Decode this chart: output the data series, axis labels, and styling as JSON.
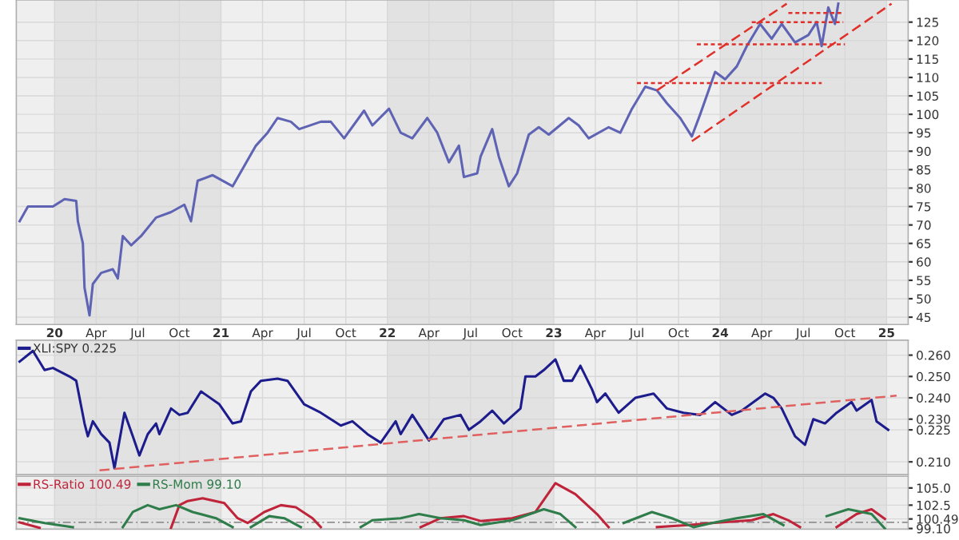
{
  "chart_data": [
    {
      "type": "line",
      "xlim": [
        2019.77,
        2025.13
      ],
      "ylim": [
        43,
        131
      ],
      "xticks": [
        {
          "value": 2020,
          "label": "20"
        },
        {
          "value": 2020.25,
          "label": "Apr"
        },
        {
          "value": 2020.5,
          "label": "Jul"
        },
        {
          "value": 2020.75,
          "label": "Oct"
        },
        {
          "value": 2021,
          "label": "21"
        },
        {
          "value": 2021.25,
          "label": "Apr"
        },
        {
          "value": 2021.5,
          "label": "Jul"
        },
        {
          "value": 2021.75,
          "label": "Oct"
        },
        {
          "value": 2022,
          "label": "22"
        },
        {
          "value": 2022.25,
          "label": "Apr"
        },
        {
          "value": 2022.5,
          "label": "Jul"
        },
        {
          "value": 2022.75,
          "label": "Oct"
        },
        {
          "value": 2023,
          "label": "23"
        },
        {
          "value": 2023.25,
          "label": "Apr"
        },
        {
          "value": 2023.5,
          "label": "Jul"
        },
        {
          "value": 2023.75,
          "label": "Oct"
        },
        {
          "value": 2024,
          "label": "24"
        },
        {
          "value": 2024.25,
          "label": "Apr"
        },
        {
          "value": 2024.5,
          "label": "Jul"
        },
        {
          "value": 2024.75,
          "label": "Oct"
        },
        {
          "value": 2025,
          "label": "25"
        }
      ],
      "yticks": [
        45,
        50,
        55,
        60,
        65,
        70,
        75,
        80,
        85,
        90,
        95,
        100,
        105,
        110,
        115,
        120,
        125
      ],
      "grid": true,
      "bands": [
        {
          "axis": "x",
          "from": 2020,
          "to": 2021,
          "color": "#e2e2e2"
        },
        {
          "axis": "x",
          "from": 2022,
          "to": 2023,
          "color": "#e2e2e2"
        },
        {
          "axis": "x",
          "from": 2024,
          "to": 2025,
          "color": "#e2e2e2"
        }
      ],
      "series": [
        {
          "color": "#5f63b4",
          "x": [
            2019.79,
            2019.84,
            2019.99,
            2020.06,
            2020.13,
            2020.14,
            2020.17,
            2020.18,
            2020.21,
            2020.23,
            2020.28,
            2020.35,
            2020.38,
            2020.41,
            2020.46,
            2020.52,
            2020.61,
            2020.7,
            2020.78,
            2020.82,
            2020.86,
            2020.95,
            2021.07,
            2021.14,
            2021.21,
            2021.28,
            2021.34,
            2021.42,
            2021.47,
            2021.6,
            2021.66,
            2021.74,
            2021.86,
            2021.91,
            2022.01,
            2022.08,
            2022.15,
            2022.24,
            2022.3,
            2022.37,
            2022.43,
            2022.46,
            2022.54,
            2022.56,
            2022.63,
            2022.67,
            2022.73,
            2022.78,
            2022.85,
            2022.91,
            2022.97,
            2023.09,
            2023.15,
            2023.21,
            2023.33,
            2023.4,
            2023.47,
            2023.55,
            2023.62,
            2023.68,
            2023.76,
            2023.83,
            2023.88,
            2023.97,
            2024.03,
            2024.1,
            2024.16,
            2024.24,
            2024.31,
            2024.37,
            2024.45,
            2024.53,
            2024.58,
            2024.61,
            2024.65,
            2024.69,
            2024.71
          ],
          "values": [
            71,
            75,
            75,
            77,
            76.5,
            71,
            65,
            53,
            45.5,
            54,
            57,
            58,
            55.5,
            67,
            64.5,
            67,
            72,
            73.5,
            75.5,
            71,
            82,
            83.5,
            80.5,
            86,
            91.5,
            95,
            99,
            98,
            96,
            98,
            98,
            93.5,
            101,
            97,
            101.5,
            95,
            93.5,
            99,
            95,
            87,
            91.5,
            83,
            84,
            88.5,
            96,
            88.5,
            80.5,
            84,
            94.5,
            96.5,
            94.5,
            99,
            97,
            93.5,
            96.5,
            95,
            101.5,
            107.5,
            106.5,
            103,
            99,
            94,
            100,
            111.5,
            109.5,
            113,
            118.5,
            124.5,
            120.5,
            124.5,
            119.5,
            121.5,
            125,
            118.5,
            129,
            124.5,
            130
          ]
        },
        {
          "color": "#e0302a",
          "line_style": "dashed",
          "x": [
            2023.62,
            2024.4
          ],
          "values": [
            106.5,
            130
          ]
        },
        {
          "color": "#e0302a",
          "line_style": "dashed",
          "x": [
            2023.83,
            2025.03
          ],
          "values": [
            92.7,
            130
          ]
        },
        {
          "color": "#e0302a",
          "line_style": "dotted",
          "x": [
            2023.5,
            2024.61
          ],
          "values": [
            108.5,
            108.5
          ]
        },
        {
          "color": "#e0302a",
          "line_style": "dotted",
          "x": [
            2023.86,
            2024.75
          ],
          "values": [
            119,
            119
          ]
        },
        {
          "color": "#e0302a",
          "line_style": "dotted",
          "x": [
            2024.19,
            2024.74
          ],
          "values": [
            125,
            125
          ]
        },
        {
          "color": "#e0302a",
          "line_style": "dotted",
          "x": [
            2024.41,
            2024.74
          ],
          "values": [
            127.5,
            127.5
          ]
        }
      ]
    },
    {
      "type": "line",
      "xlim": [
        2019.77,
        2025.13
      ],
      "ylim": [
        0.204,
        0.267
      ],
      "tick_labels": "y",
      "legend": "top left",
      "grid": true,
      "xticks": [
        2020,
        2020.25,
        2020.5,
        2020.75,
        2021,
        2021.25,
        2021.5,
        2021.75,
        2022,
        2022.25,
        2022.5,
        2022.75,
        2023,
        2023.25,
        2023.5,
        2023.75,
        2024,
        2024.25,
        2024.5,
        2024.75,
        2025
      ],
      "yticks": [
        {
          "value": 0.21,
          "label": "0.210"
        },
        {
          "value": 0.225,
          "label": "0.225"
        },
        {
          "value": 0.23,
          "label": "0.230"
        },
        {
          "value": 0.24,
          "label": "0.240"
        },
        {
          "value": 0.25,
          "label": "0.250"
        },
        {
          "value": 0.26,
          "label": "0.260"
        }
      ],
      "bands": [
        {
          "axis": "x",
          "from": 2020,
          "to": 2021,
          "color": "#e2e2e2"
        },
        {
          "axis": "x",
          "from": 2022,
          "to": 2023,
          "color": "#e2e2e2"
        },
        {
          "axis": "x",
          "from": 2024,
          "to": 2025,
          "color": "#e2e2e2"
        }
      ],
      "series": [
        {
          "name": "XLI:SPY 0.225",
          "color": "#1c1c8c",
          "x": [
            2019.79,
            2019.87,
            2019.94,
            2019.99,
            2020.09,
            2020.13,
            2020.18,
            2020.2,
            2020.23,
            2020.28,
            2020.33,
            2020.36,
            2020.42,
            2020.47,
            2020.51,
            2020.56,
            2020.61,
            2020.63,
            2020.7,
            2020.75,
            2020.8,
            2020.88,
            2020.99,
            2021.07,
            2021.12,
            2021.18,
            2021.24,
            2021.34,
            2021.4,
            2021.5,
            2021.6,
            2021.72,
            2021.79,
            2021.88,
            2021.96,
            2022.05,
            2022.08,
            2022.15,
            2022.25,
            2022.34,
            2022.44,
            2022.49,
            2022.56,
            2022.63,
            2022.7,
            2022.8,
            2022.83,
            2022.89,
            2022.94,
            2023.01,
            2023.06,
            2023.11,
            2023.16,
            2023.23,
            2023.26,
            2023.31,
            2023.39,
            2023.49,
            2023.6,
            2023.68,
            2023.78,
            2023.88,
            2023.97,
            2024.07,
            2024.13,
            2024.27,
            2024.32,
            2024.37,
            2024.45,
            2024.51,
            2024.56,
            2024.63,
            2024.7,
            2024.79,
            2024.82,
            2024.91,
            2024.94,
            2025.01
          ],
          "values": [
            0.257,
            0.262,
            0.253,
            0.254,
            0.25,
            0.248,
            0.228,
            0.222,
            0.229,
            0.223,
            0.219,
            0.207,
            0.233,
            0.222,
            0.213,
            0.223,
            0.228,
            0.223,
            0.235,
            0.232,
            0.233,
            0.243,
            0.237,
            0.228,
            0.229,
            0.243,
            0.248,
            0.249,
            0.248,
            0.237,
            0.233,
            0.227,
            0.229,
            0.223,
            0.219,
            0.229,
            0.223,
            0.232,
            0.22,
            0.23,
            0.232,
            0.225,
            0.229,
            0.234,
            0.228,
            0.235,
            0.25,
            0.25,
            0.253,
            0.258,
            0.248,
            0.248,
            0.255,
            0.244,
            0.238,
            0.242,
            0.233,
            0.24,
            0.242,
            0.235,
            0.233,
            0.232,
            0.238,
            0.232,
            0.234,
            0.242,
            0.24,
            0.235,
            0.222,
            0.218,
            0.23,
            0.228,
            0.233,
            0.238,
            0.234,
            0.239,
            0.229,
            0.225
          ]
        },
        {
          "color": "#e06060",
          "line_style": "dashed",
          "x": [
            2020.27,
            2025.06
          ],
          "values": [
            0.206,
            0.241
          ]
        }
      ]
    },
    {
      "type": "line",
      "xlim": [
        2019.77,
        2025.13
      ],
      "ylim": [
        99.0,
        106.7
      ],
      "tick_labels": "y",
      "legend": "top left",
      "grid": true,
      "xticks": [
        2020,
        2020.25,
        2020.5,
        2020.75,
        2021,
        2021.25,
        2021.5,
        2021.75,
        2022,
        2022.25,
        2022.5,
        2022.75,
        2023,
        2023.25,
        2023.5,
        2023.75,
        2024,
        2024.25,
        2024.5,
        2024.75,
        2025
      ],
      "yticks": [
        {
          "value": 99.1,
          "label": "99.10"
        },
        {
          "value": 100.49,
          "label": "100.49"
        },
        {
          "value": 102.5,
          "label": "102.5"
        },
        {
          "value": 105,
          "label": "105.0"
        }
      ],
      "bands": [
        {
          "axis": "x",
          "from": 2020,
          "to": 2021,
          "color": "#e2e2e2"
        },
        {
          "axis": "x",
          "from": 2022,
          "to": 2023,
          "color": "#e2e2e2"
        },
        {
          "axis": "x",
          "from": 2024,
          "to": 2025,
          "color": "#e2e2e2"
        }
      ],
      "ref_lines": [
        {
          "axis": "y",
          "value": 100,
          "color": "#909090",
          "line_style": "dashdot"
        }
      ],
      "series": [
        {
          "name": "RS-Ratio 100.49",
          "color": "#c0243a",
          "x": [
            2019.79,
            2019.91,
            2020.3,
            2020.7,
            2020.75,
            2020.8,
            2020.89,
            2021.02,
            2021.1,
            2021.16,
            2021.26,
            2021.36,
            2021.45,
            2021.55,
            2021.6,
            2021.9,
            2022.2,
            2022.32,
            2022.46,
            2022.56,
            2022.75,
            2022.89,
            2023.01,
            2023.13,
            2023.26,
            2023.33,
            2023.45,
            2023.62,
            2023.81,
            2023.95,
            2024.19,
            2024.32,
            2024.41,
            2024.48,
            2024.6,
            2024.7,
            2024.82,
            2024.91,
            2024.99
          ],
          "values": [
            100.0,
            99.2,
            null,
            99.2,
            102.5,
            103.1,
            103.5,
            102.8,
            100.6,
            99.9,
            101.5,
            102.5,
            102.2,
            100.6,
            99.3,
            null,
            99.3,
            100.6,
            100.9,
            100.2,
            100.6,
            101.5,
            105.7,
            104.1,
            101.2,
            99.3,
            null,
            99.3,
            99.6,
            99.9,
            100.3,
            101.2,
            100.3,
            99.3,
            null,
            99.3,
            101.2,
            101.9,
            100.49
          ]
        },
        {
          "name": "RS-Mom 99.10",
          "color": "#2e7d4a",
          "x": [
            2019.79,
            2019.94,
            2020.11,
            2020.25,
            2020.41,
            2020.47,
            2020.56,
            2020.63,
            2020.73,
            2020.83,
            2020.97,
            2021.07,
            2021.12,
            2021.18,
            2021.29,
            2021.38,
            2021.48,
            2021.7,
            2021.84,
            2021.91,
            2022.08,
            2022.19,
            2022.32,
            2022.46,
            2022.56,
            2022.75,
            2022.94,
            2023.04,
            2023.13,
            2023.25,
            2023.42,
            2023.59,
            2023.71,
            2023.84,
            2023.95,
            2024.1,
            2024.26,
            2024.38,
            2024.5,
            2024.64,
            2024.77,
            2024.91,
            2024.99
          ],
          "values": [
            100.6,
            99.9,
            99.3,
            null,
            99.3,
            101.5,
            102.5,
            101.9,
            102.5,
            101.5,
            100.6,
            99.3,
            null,
            99.3,
            100.9,
            100.6,
            99.3,
            null,
            99.3,
            100.3,
            100.6,
            101.2,
            100.6,
            100.3,
            99.6,
            100.3,
            101.9,
            101.2,
            99.3,
            null,
            99.9,
            101.5,
            100.6,
            99.3,
            99.9,
            100.6,
            101.2,
            99.6,
            null,
            100.9,
            101.9,
            101.2,
            99.1
          ]
        }
      ]
    }
  ]
}
